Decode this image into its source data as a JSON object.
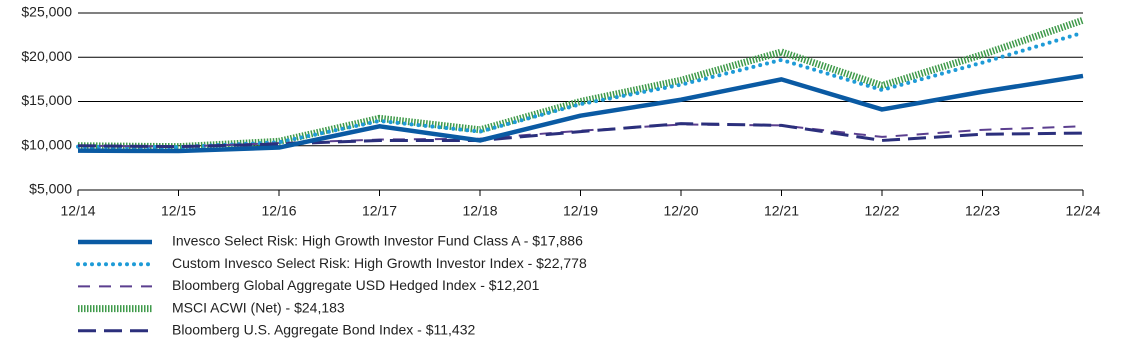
{
  "chart_data": {
    "type": "line",
    "categories": [
      "12/14",
      "12/15",
      "12/16",
      "12/17",
      "12/18",
      "12/19",
      "12/20",
      "12/21",
      "12/22",
      "12/23",
      "12/24"
    ],
    "series": [
      {
        "name": "Invesco Select Risk: High Growth Investor Fund Class A - $17,886",
        "color": "#0a5aa3",
        "values": [
          9450,
          9400,
          9800,
          12200,
          10600,
          13400,
          15200,
          17500,
          14100,
          16100,
          17886
        ]
      },
      {
        "name": "Custom Invesco Select Risk: High Growth Investor Index - $22,778",
        "color": "#1e9bd7",
        "values": [
          9900,
          9850,
          10400,
          12800,
          11600,
          14700,
          16900,
          19700,
          16300,
          19400,
          22778
        ]
      },
      {
        "name": "Bloomberg Global Aggregate USD Hedged Index - $12,201",
        "color": "#5b3f8f",
        "values": [
          10000,
          9900,
          10300,
          10700,
          10800,
          11700,
          12400,
          12300,
          11000,
          11800,
          12201
        ]
      },
      {
        "name": "MSCI ACWI (Net) - $24,183",
        "color": "#3f9a4a",
        "values": [
          10000,
          9900,
          10500,
          13100,
          11800,
          15000,
          17400,
          20600,
          16800,
          20300,
          24183
        ]
      },
      {
        "name": "Bloomberg U.S. Aggregate Bond Index - $11,432",
        "color": "#2b2f7c",
        "values": [
          10000,
          9900,
          10200,
          10600,
          10600,
          11600,
          12500,
          12300,
          10600,
          11300,
          11432
        ]
      }
    ],
    "ylim": [
      5000,
      25000
    ],
    "yticks": [
      {
        "value": 5000,
        "label": "$5,000"
      },
      {
        "value": 10000,
        "label": "$10,000"
      },
      {
        "value": 15000,
        "label": "$15,000"
      },
      {
        "value": 20000,
        "label": "$20,000"
      },
      {
        "value": 25000,
        "label": "$25,000"
      }
    ],
    "grid": true
  }
}
